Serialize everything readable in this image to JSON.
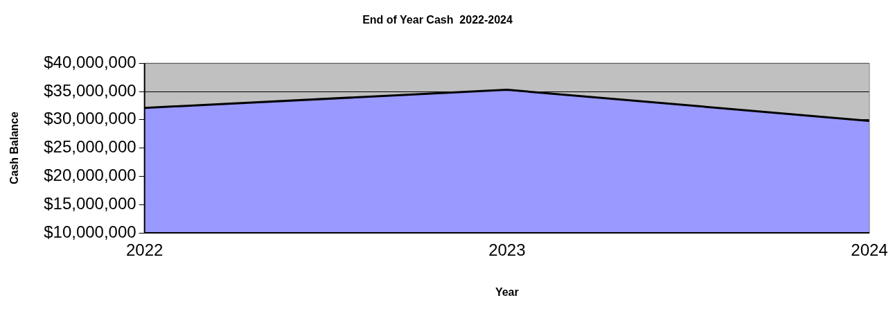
{
  "chart_data": {
    "type": "area",
    "title": "End of Year Cash  2022-2024",
    "xlabel": "Year",
    "ylabel": "Cash Balance",
    "categories": [
      "2022",
      "2023",
      "2024"
    ],
    "series": [
      {
        "color": "#9999ff",
        "values": [
          32100000,
          35300000,
          29800000
        ]
      }
    ],
    "ylim": [
      10000000,
      40000000
    ],
    "yticks": [
      {
        "value": 10000000,
        "label": "$10,000,000"
      },
      {
        "value": 15000000,
        "label": "$15,000,000"
      },
      {
        "value": 20000000,
        "label": "$20,000,000"
      },
      {
        "value": 25000000,
        "label": "$25,000,000"
      },
      {
        "value": 30000000,
        "label": "$30,000,000"
      },
      {
        "value": 35000000,
        "label": "$35,000,000"
      },
      {
        "value": 40000000,
        "label": "$40,000,000"
      }
    ],
    "grid": "y",
    "legend": false
  }
}
